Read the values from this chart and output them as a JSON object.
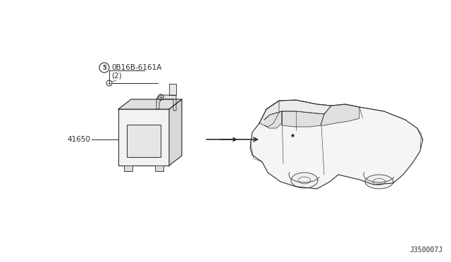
{
  "bg_color": "#ffffff",
  "diagram_id": "J350007J",
  "part_number_1": "0B16B-6161A",
  "part_qty_1": "(2)",
  "part_circle_1": "5",
  "part_number_2": "41650",
  "line_color": "#2a2a2a",
  "text_color": "#2a2a2a",
  "font_size_label": 7.5,
  "font_size_id": 7.0,
  "fig_w": 6.4,
  "fig_h": 3.72,
  "dpi": 100
}
